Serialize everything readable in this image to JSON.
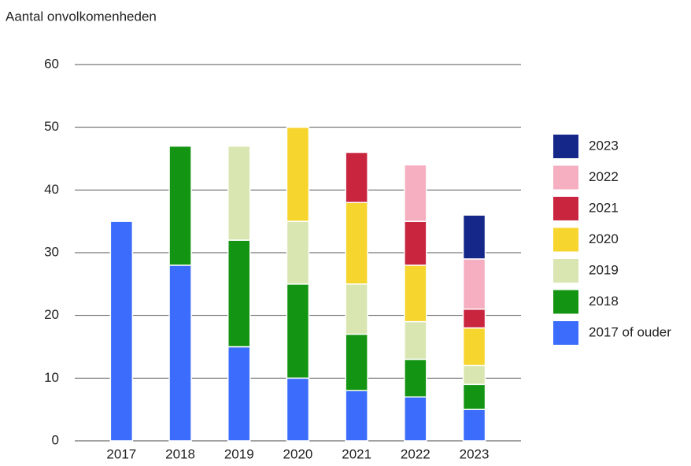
{
  "chart_data": {
    "type": "stacked_bar",
    "title": "Aantal onvolkomenheden",
    "categories": [
      "2017",
      "2018",
      "2019",
      "2020",
      "2021",
      "2022",
      "2023"
    ],
    "series": [
      {
        "name": "2017 of ouder",
        "color": "#3b6cfb",
        "values": [
          35,
          28,
          15,
          10,
          8,
          7,
          5
        ]
      },
      {
        "name": "2018",
        "color": "#139412",
        "values": [
          null,
          19,
          17,
          15,
          9,
          6,
          4
        ]
      },
      {
        "name": "2019",
        "color": "#d9e6b1",
        "values": [
          null,
          null,
          15,
          10,
          8,
          6,
          3
        ]
      },
      {
        "name": "2020",
        "color": "#f7d52f",
        "values": [
          null,
          null,
          null,
          15,
          13,
          9,
          6
        ]
      },
      {
        "name": "2021",
        "color": "#c9253f",
        "values": [
          null,
          null,
          null,
          null,
          8,
          7,
          3
        ]
      },
      {
        "name": "2022",
        "color": "#f5afc0",
        "values": [
          null,
          null,
          null,
          null,
          null,
          9,
          8
        ]
      },
      {
        "name": "2023",
        "color": "#15288a",
        "values": [
          null,
          null,
          null,
          null,
          null,
          null,
          7
        ]
      }
    ],
    "ylim": [
      0,
      60
    ],
    "yticks": [
      0,
      10,
      20,
      30,
      40,
      50,
      60
    ],
    "grid": true,
    "legend": "right"
  }
}
